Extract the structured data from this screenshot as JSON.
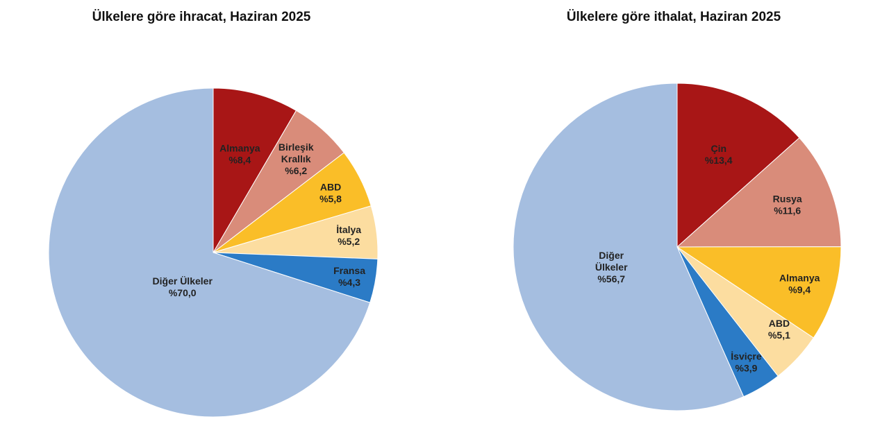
{
  "chart_data": [
    {
      "type": "pie",
      "title": "Ülkelere göre ihracat, Haziran 2025",
      "start_angle_deg": 0,
      "direction": "clockwise",
      "slices": [
        {
          "label": [
            "Almanya"
          ],
          "value_text": "%8,4",
          "value": 8.4,
          "color": "#A81616"
        },
        {
          "label": [
            "Birleşik",
            "Krallık"
          ],
          "value_text": "%6,2",
          "value": 6.2,
          "color": "#D98C7A"
        },
        {
          "label": [
            "ABD"
          ],
          "value_text": "%5,8",
          "value": 5.8,
          "color": "#FABE28"
        },
        {
          "label": [
            "İtalya"
          ],
          "value_text": "%5,2",
          "value": 5.2,
          "color": "#FCDDA0"
        },
        {
          "label": [
            "Fransa"
          ],
          "value_text": "%4,3",
          "value": 4.3,
          "color": "#2B7BC6"
        },
        {
          "label": [
            "Diğer Ülkeler"
          ],
          "value_text": "%70,0",
          "value": 70.0,
          "color": "#A5BEE0"
        }
      ]
    },
    {
      "type": "pie",
      "title": "Ülkelere göre ithalat, Haziran 2025",
      "start_angle_deg": 0,
      "direction": "clockwise",
      "slices": [
        {
          "label": [
            "Çin"
          ],
          "value_text": "%13,4",
          "value": 13.4,
          "color": "#A81616"
        },
        {
          "label": [
            "Rusya"
          ],
          "value_text": "%11,6",
          "value": 11.6,
          "color": "#D98C7A"
        },
        {
          "label": [
            "Almanya"
          ],
          "value_text": "%9,4",
          "value": 9.4,
          "color": "#FABE28"
        },
        {
          "label": [
            "ABD"
          ],
          "value_text": "%5,1",
          "value": 5.1,
          "color": "#FCDDA0"
        },
        {
          "label": [
            "İsviçre"
          ],
          "value_text": "%3,9",
          "value": 3.9,
          "color": "#2B7BC6"
        },
        {
          "label": [
            "Diğer",
            "Ülkeler"
          ],
          "value_text": "%56,7",
          "value": 56.7,
          "color": "#A5BEE0"
        }
      ]
    }
  ]
}
